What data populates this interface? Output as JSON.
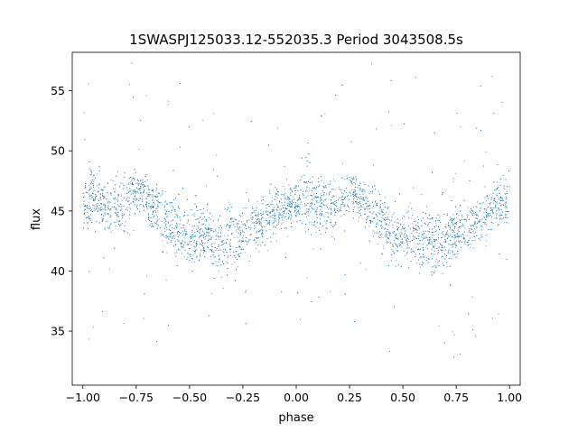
{
  "chart_data": {
    "type": "scatter",
    "title": "1SWASPJ125033.12-552035.3 Period 3043508.5s",
    "xlabel": "phase",
    "ylabel": "flux",
    "xlim": [
      -1.05,
      1.05
    ],
    "ylim": [
      30.5,
      58.2
    ],
    "xticks": [
      -1.0,
      -0.75,
      -0.5,
      -0.25,
      0.0,
      0.25,
      0.5,
      0.75,
      1.0
    ],
    "xtick_labels": [
      "−1.00",
      "−0.75",
      "−0.50",
      "−0.25",
      "0.00",
      "0.25",
      "0.50",
      "0.75",
      "1.00"
    ],
    "yticks": [
      35,
      40,
      45,
      50,
      55
    ],
    "ytick_labels": [
      "35",
      "40",
      "45",
      "50",
      "55"
    ],
    "grid": false,
    "marker_color": "#1f77b4",
    "series": [
      {
        "x": [
          -1.0,
          -0.975,
          -0.95,
          -0.925,
          -0.9,
          -0.875,
          -0.85,
          -0.825,
          -0.8,
          -0.775,
          -0.75,
          -0.725,
          -0.7,
          -0.675,
          -0.65,
          -0.625,
          -0.6,
          -0.575,
          -0.55,
          -0.525,
          -0.5,
          -0.475,
          -0.45,
          -0.425,
          -0.4,
          -0.375,
          -0.35,
          -0.325,
          -0.3,
          -0.275,
          -0.25,
          -0.225,
          -0.2,
          -0.175,
          -0.15,
          -0.125,
          -0.1,
          -0.075,
          -0.05,
          -0.025,
          0.0,
          0.025,
          0.05,
          0.075,
          0.1,
          0.125,
          0.15,
          0.175,
          0.2,
          0.225,
          0.25,
          0.275,
          0.3,
          0.325,
          0.35,
          0.375,
          0.4,
          0.425,
          0.45,
          0.475,
          0.5,
          0.525,
          0.55,
          0.575,
          0.6,
          0.625,
          0.65,
          0.675,
          0.7,
          0.725,
          0.75,
          0.775,
          0.8,
          0.825,
          0.85,
          0.875,
          0.9,
          0.925,
          0.95,
          0.975,
          1.0
        ],
        "y": [
          45.5,
          46.0,
          46.3,
          45.8,
          45.2,
          45.5,
          45.6,
          45.4,
          45.6,
          46.2,
          46.8,
          46.4,
          46.0,
          45.5,
          45.0,
          44.6,
          44.0,
          43.6,
          43.2,
          43.0,
          42.8,
          43.0,
          43.2,
          43.0,
          42.6,
          42.3,
          42.0,
          42.3,
          42.7,
          43.0,
          43.3,
          43.6,
          43.8,
          44.0,
          44.2,
          44.6,
          45.0,
          45.3,
          45.5,
          45.4,
          45.5,
          46.0,
          46.3,
          45.8,
          45.2,
          45.5,
          45.6,
          45.4,
          45.6,
          46.2,
          46.8,
          46.4,
          46.0,
          45.5,
          45.0,
          44.6,
          44.0,
          43.6,
          43.2,
          43.0,
          42.8,
          43.0,
          43.2,
          43.0,
          42.6,
          42.3,
          42.0,
          42.3,
          42.7,
          43.0,
          43.3,
          43.6,
          43.8,
          44.0,
          44.2,
          44.6,
          45.0,
          45.3,
          45.5,
          45.4,
          45.5
        ],
        "spread": [
          2.5,
          3.0,
          3.5,
          3.5,
          3.0,
          3.0,
          3.0,
          2.8,
          2.8,
          2.5,
          2.2,
          2.2,
          2.5,
          2.5,
          2.8,
          3.0,
          3.0,
          3.0,
          3.0,
          3.0,
          3.0,
          3.0,
          3.0,
          3.2,
          3.2,
          3.2,
          3.5,
          3.5,
          3.5,
          3.2,
          3.0,
          2.8,
          2.8,
          2.8,
          2.8,
          2.8,
          2.8,
          2.5,
          2.5,
          2.5,
          2.5,
          3.0,
          3.5,
          3.5,
          3.0,
          3.0,
          3.0,
          2.8,
          2.8,
          2.5,
          2.2,
          2.2,
          2.5,
          2.5,
          2.8,
          3.0,
          3.0,
          3.0,
          3.0,
          3.0,
          3.0,
          3.0,
          3.0,
          3.2,
          3.2,
          3.2,
          3.5,
          3.5,
          3.5,
          3.2,
          3.0,
          2.8,
          2.8,
          2.8,
          2.8,
          2.8,
          2.8,
          2.5,
          2.5,
          2.5,
          2.5
        ]
      }
    ]
  }
}
